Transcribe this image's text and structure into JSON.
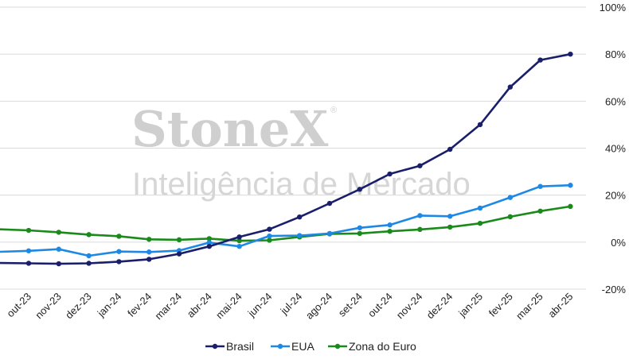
{
  "watermark": {
    "brand": "StoneX",
    "registered": "®",
    "tagline": "Inteligência de Mercado"
  },
  "colors": {
    "Brasil": "#1a1f6b",
    "EUA": "#1e88e5",
    "Zona do Euro": "#1a8a1a",
    "grid": "#d9d9d9"
  },
  "chart_data": {
    "type": "line",
    "y_axis_position": "right",
    "ylim": [
      -20,
      100
    ],
    "yticks": [
      -20,
      0,
      20,
      40,
      60,
      80,
      100
    ],
    "ytick_labels": [
      "-20%",
      "0%",
      "20%",
      "40%",
      "60%",
      "80%",
      "100%"
    ],
    "grid": true,
    "legend_position": "bottom",
    "categories": [
      "out-23",
      "nov-23",
      "dez-23",
      "jan-24",
      "fev-24",
      "mar-24",
      "abr-24",
      "mai-24",
      "jun-24",
      "jul-24",
      "ago-24",
      "set-24",
      "out-24",
      "nov-24",
      "dez-24",
      "jan-25",
      "fev-25",
      "mar-25",
      "abr-25"
    ],
    "series": [
      {
        "name": "Brasil",
        "values": [
          -9.0,
          -9.2,
          -9.0,
          -8.3,
          -7.3,
          -5.0,
          -1.8,
          2.2,
          5.5,
          10.7,
          16.5,
          22.5,
          29.0,
          32.5,
          39.5,
          50.0,
          66.0,
          77.5,
          80.0
        ]
      },
      {
        "name": "EUA",
        "values": [
          -3.7,
          -3.0,
          -5.8,
          -4.0,
          -4.2,
          -3.6,
          -0.2,
          -1.8,
          2.6,
          2.8,
          3.7,
          6.1,
          7.3,
          11.3,
          11.0,
          14.5,
          19.0,
          23.7,
          24.2
        ]
      },
      {
        "name": "Zona do Euro",
        "values": [
          5.0,
          4.2,
          3.2,
          2.5,
          1.2,
          1.0,
          1.5,
          0.6,
          0.8,
          2.2,
          3.5,
          3.7,
          4.6,
          5.4,
          6.4,
          8.0,
          10.8,
          13.2,
          15.2
        ]
      }
    ]
  }
}
